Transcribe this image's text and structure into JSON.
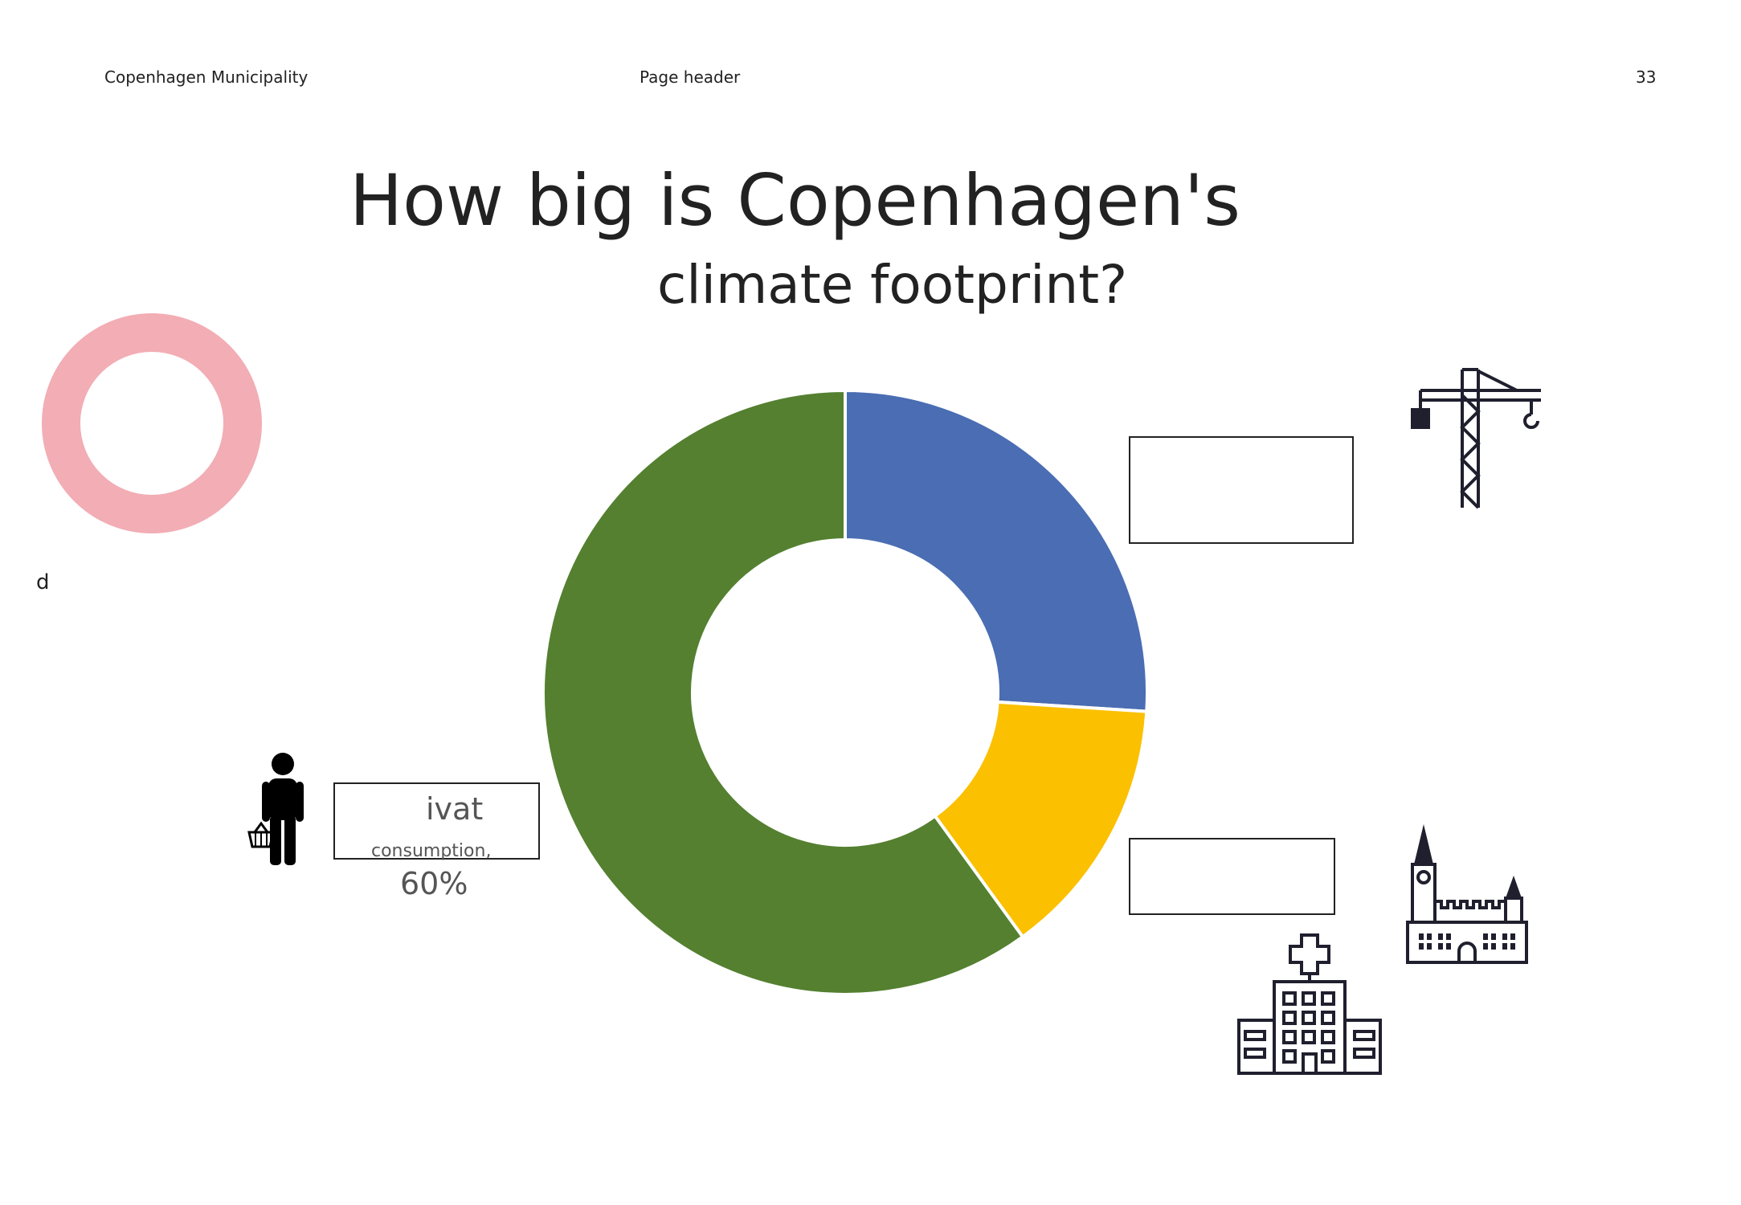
{
  "header": {
    "left": "Copenhagen Municipality",
    "center": "Page header",
    "page_number": "33"
  },
  "title": {
    "line1": "How big is Copenhagen's",
    "line2": "climate footprint?"
  },
  "stray_text": "d",
  "labels": {
    "left_line1": "ivat",
    "left_line2": "consumption,",
    "left_value": "60%"
  },
  "colors": {
    "pink_ring": "#f2adb5",
    "outline": "#1f1f2e"
  },
  "icons": {
    "person": "person-with-basket-icon",
    "crane": "construction-crane-icon",
    "city_hall": "city-hall-icon",
    "hospital": "hospital-icon",
    "ring": "ring-icon"
  },
  "chart_data": {
    "type": "pie",
    "donut": true,
    "categories": [
      "",
      "",
      ""
    ],
    "values": [
      26,
      14,
      60
    ],
    "colors": [
      "#4a6db3",
      "#fbc000",
      "#548030"
    ],
    "title": "",
    "legend": "none"
  }
}
